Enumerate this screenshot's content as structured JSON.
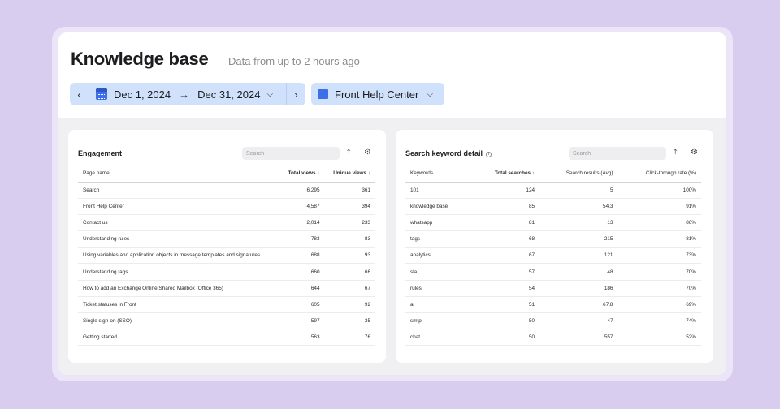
{
  "page": {
    "title": "Knowledge base",
    "subtitle": "Data from up to 2 hours ago"
  },
  "date_filter": {
    "start": "Dec 1, 2024",
    "end": "Dec 31, 2024",
    "prev_icon": "chevron-left-icon",
    "next_icon": "chevron-right-icon",
    "calendar_icon": "calendar-icon"
  },
  "help_center": {
    "label": "Front Help Center",
    "icon": "book-icon"
  },
  "engagement": {
    "title": "Engagement",
    "search_placeholder": "Search",
    "columns": [
      "Page name",
      "Total views ↓",
      "Unique views ↓"
    ],
    "rows": [
      [
        "Search",
        "6,295",
        "361"
      ],
      [
        "Front Help Center",
        "4,587",
        "394"
      ],
      [
        "Contact us",
        "2,014",
        "233"
      ],
      [
        "Understanding rules",
        "783",
        "83"
      ],
      [
        "Using variables and application objects in message templates and signatures",
        "688",
        "93"
      ],
      [
        "Understanding tags",
        "660",
        "66"
      ],
      [
        "How to add an Exchange Online Shared Mailbox (Office 365)",
        "644",
        "67"
      ],
      [
        "Ticket statuses in Front",
        "605",
        "92"
      ],
      [
        "Single sign-on (SSO)",
        "597",
        "35"
      ],
      [
        "Getting started",
        "563",
        "76"
      ]
    ]
  },
  "keywords": {
    "title": "Search keyword detail",
    "search_placeholder": "Search",
    "columns": [
      "Keywords",
      "Total searches ↓",
      "Search results (Avg)",
      "Click-through rate (%)"
    ],
    "rows": [
      [
        "101",
        "124",
        "5",
        "100%"
      ],
      [
        "knowledge base",
        "85",
        "54.3",
        "91%"
      ],
      [
        "whatsapp",
        "81",
        "13",
        "86%"
      ],
      [
        "tags",
        "68",
        "215",
        "81%"
      ],
      [
        "analytics",
        "67",
        "121",
        "73%"
      ],
      [
        "sla",
        "57",
        "48",
        "70%"
      ],
      [
        "rules",
        "54",
        "186",
        "70%"
      ],
      [
        "ai",
        "51",
        "67.8",
        "69%"
      ],
      [
        "smtp",
        "50",
        "47",
        "74%"
      ],
      [
        "chat",
        "50",
        "557",
        "52%"
      ]
    ]
  },
  "colors": {
    "background": "#d9cdef",
    "filter_bg": "#cfe1fb",
    "accent": "#3f6fe8"
  }
}
